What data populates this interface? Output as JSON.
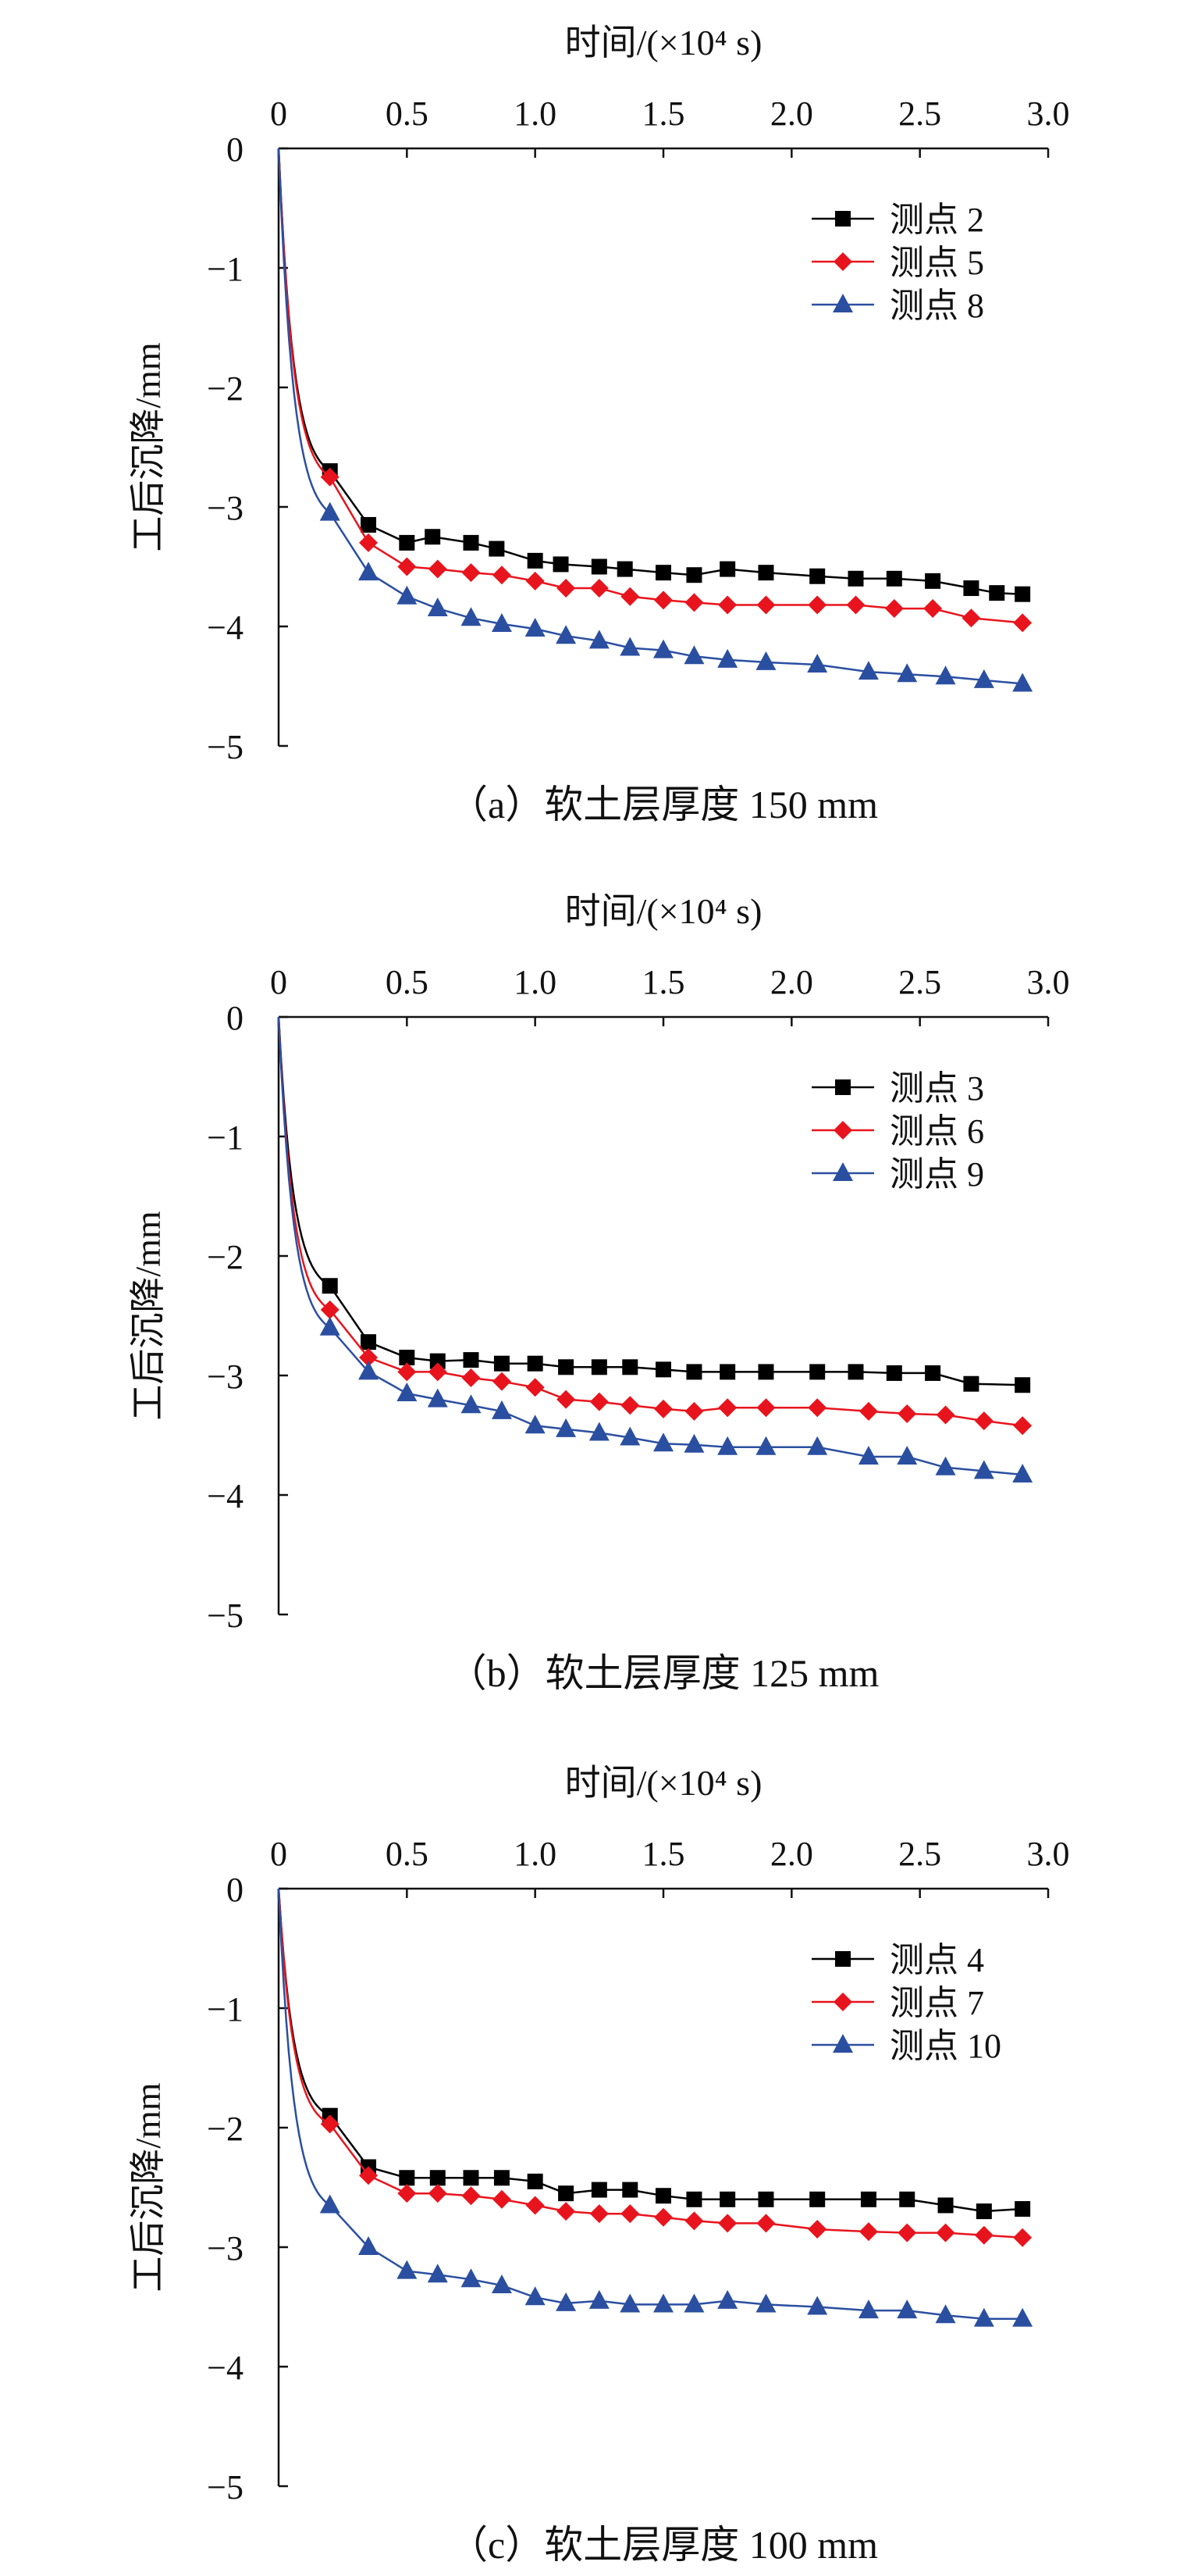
{
  "chart_data": [
    {
      "type": "line",
      "caption": "（a）软土层厚度 150 mm",
      "xlabel": "时间/(×10⁴ s)",
      "ylabel": "工后沉降/mm",
      "xlim": [
        0,
        3.0
      ],
      "ylim": [
        -5,
        0
      ],
      "xticks": [
        "0",
        "0.5",
        "1.0",
        "1.5",
        "2.0",
        "2.5",
        "3.0"
      ],
      "yticks": [
        "0",
        "−1",
        "−2",
        "−3",
        "−4",
        "−5"
      ],
      "legend_position": "top-right",
      "series": [
        {
          "name": "测点 2",
          "color": "#000000",
          "marker": "square",
          "x": [
            0,
            0.2,
            0.35,
            0.5,
            0.6,
            0.75,
            0.85,
            1.0,
            1.1,
            1.25,
            1.35,
            1.5,
            1.62,
            1.75,
            1.9,
            2.1,
            2.25,
            2.4,
            2.55,
            2.7,
            2.8,
            2.9
          ],
          "y": [
            0,
            -2.7,
            -3.15,
            -3.3,
            -3.25,
            -3.3,
            -3.35,
            -3.45,
            -3.48,
            -3.5,
            -3.52,
            -3.55,
            -3.57,
            -3.52,
            -3.55,
            -3.58,
            -3.6,
            -3.6,
            -3.62,
            -3.68,
            -3.72,
            -3.73
          ]
        },
        {
          "name": "测点 5",
          "color": "#e8141d",
          "marker": "diamond",
          "x": [
            0,
            0.2,
            0.35,
            0.5,
            0.62,
            0.75,
            0.87,
            1.0,
            1.12,
            1.25,
            1.37,
            1.5,
            1.62,
            1.75,
            1.9,
            2.1,
            2.25,
            2.4,
            2.55,
            2.7,
            2.9
          ],
          "y": [
            0,
            -2.75,
            -3.3,
            -3.5,
            -3.52,
            -3.55,
            -3.57,
            -3.62,
            -3.68,
            -3.68,
            -3.75,
            -3.78,
            -3.8,
            -3.82,
            -3.82,
            -3.82,
            -3.82,
            -3.85,
            -3.85,
            -3.93,
            -3.97
          ]
        },
        {
          "name": "测点 8",
          "color": "#2b4fa0",
          "marker": "triangle",
          "x": [
            0,
            0.2,
            0.35,
            0.5,
            0.62,
            0.75,
            0.87,
            1.0,
            1.12,
            1.25,
            1.37,
            1.5,
            1.62,
            1.75,
            1.9,
            2.1,
            2.3,
            2.45,
            2.6,
            2.75,
            2.9
          ],
          "y": [
            0,
            -3.05,
            -3.55,
            -3.75,
            -3.85,
            -3.93,
            -3.98,
            -4.02,
            -4.08,
            -4.12,
            -4.18,
            -4.2,
            -4.25,
            -4.28,
            -4.3,
            -4.32,
            -4.38,
            -4.4,
            -4.42,
            -4.45,
            -4.48
          ]
        }
      ]
    },
    {
      "type": "line",
      "caption": "（b）软土层厚度 125 mm",
      "xlabel": "时间/(×10⁴ s)",
      "ylabel": "工后沉降/mm",
      "xlim": [
        0,
        3.0
      ],
      "ylim": [
        -5,
        0
      ],
      "xticks": [
        "0",
        "0.5",
        "1.0",
        "1.5",
        "2.0",
        "2.5",
        "3.0"
      ],
      "yticks": [
        "0",
        "−1",
        "−2",
        "−3",
        "−4",
        "−5"
      ],
      "legend_position": "top-right",
      "series": [
        {
          "name": "测点 3",
          "color": "#000000",
          "marker": "square",
          "x": [
            0,
            0.2,
            0.35,
            0.5,
            0.62,
            0.75,
            0.87,
            1.0,
            1.12,
            1.25,
            1.37,
            1.5,
            1.62,
            1.75,
            1.9,
            2.1,
            2.25,
            2.4,
            2.55,
            2.7,
            2.9
          ],
          "y": [
            0,
            -2.25,
            -2.72,
            -2.85,
            -2.88,
            -2.87,
            -2.9,
            -2.9,
            -2.93,
            -2.93,
            -2.93,
            -2.95,
            -2.97,
            -2.97,
            -2.97,
            -2.97,
            -2.97,
            -2.98,
            -2.98,
            -3.07,
            -3.08
          ]
        },
        {
          "name": "测点 6",
          "color": "#e8141d",
          "marker": "diamond",
          "x": [
            0,
            0.2,
            0.35,
            0.5,
            0.62,
            0.75,
            0.87,
            1.0,
            1.12,
            1.25,
            1.37,
            1.5,
            1.62,
            1.75,
            1.9,
            2.1,
            2.3,
            2.45,
            2.6,
            2.75,
            2.9
          ],
          "y": [
            0,
            -2.45,
            -2.85,
            -2.97,
            -2.97,
            -3.02,
            -3.05,
            -3.1,
            -3.2,
            -3.22,
            -3.25,
            -3.28,
            -3.3,
            -3.27,
            -3.27,
            -3.27,
            -3.3,
            -3.32,
            -3.33,
            -3.38,
            -3.42
          ]
        },
        {
          "name": "测点 9",
          "color": "#2b4fa0",
          "marker": "triangle",
          "x": [
            0,
            0.2,
            0.35,
            0.5,
            0.62,
            0.75,
            0.87,
            1.0,
            1.12,
            1.25,
            1.37,
            1.5,
            1.62,
            1.75,
            1.9,
            2.1,
            2.3,
            2.45,
            2.6,
            2.75,
            2.9
          ],
          "y": [
            0,
            -2.6,
            -2.97,
            -3.15,
            -3.2,
            -3.25,
            -3.3,
            -3.42,
            -3.45,
            -3.48,
            -3.52,
            -3.57,
            -3.58,
            -3.6,
            -3.6,
            -3.6,
            -3.68,
            -3.68,
            -3.77,
            -3.8,
            -3.83
          ]
        }
      ]
    },
    {
      "type": "line",
      "caption": "（c）软土层厚度 100 mm",
      "xlabel": "时间/(×10⁴ s)",
      "ylabel": "工后沉降/mm",
      "xlim": [
        0,
        3.0
      ],
      "ylim": [
        -5,
        0
      ],
      "xticks": [
        "0",
        "0.5",
        "1.0",
        "1.5",
        "2.0",
        "2.5",
        "3.0"
      ],
      "yticks": [
        "0",
        "−1",
        "−2",
        "−3",
        "−4",
        "−5"
      ],
      "legend_position": "top-right",
      "series": [
        {
          "name": "测点 4",
          "color": "#000000",
          "marker": "square",
          "x": [
            0,
            0.2,
            0.35,
            0.5,
            0.62,
            0.75,
            0.87,
            1.0,
            1.12,
            1.25,
            1.37,
            1.5,
            1.62,
            1.75,
            1.9,
            2.1,
            2.3,
            2.45,
            2.6,
            2.75,
            2.9
          ],
          "y": [
            0,
            -1.9,
            -2.33,
            -2.42,
            -2.42,
            -2.42,
            -2.42,
            -2.45,
            -2.55,
            -2.52,
            -2.52,
            -2.57,
            -2.6,
            -2.6,
            -2.6,
            -2.6,
            -2.6,
            -2.6,
            -2.65,
            -2.7,
            -2.68
          ]
        },
        {
          "name": "测点 7",
          "color": "#e8141d",
          "marker": "diamond",
          "x": [
            0,
            0.2,
            0.35,
            0.5,
            0.62,
            0.75,
            0.87,
            1.0,
            1.12,
            1.25,
            1.37,
            1.5,
            1.62,
            1.75,
            1.9,
            2.1,
            2.3,
            2.45,
            2.6,
            2.75,
            2.9
          ],
          "y": [
            0,
            -1.97,
            -2.4,
            -2.55,
            -2.55,
            -2.57,
            -2.6,
            -2.65,
            -2.7,
            -2.72,
            -2.72,
            -2.75,
            -2.78,
            -2.8,
            -2.8,
            -2.85,
            -2.87,
            -2.88,
            -2.88,
            -2.9,
            -2.92
          ]
        },
        {
          "name": "测点 10",
          "color": "#2b4fa0",
          "marker": "triangle",
          "x": [
            0,
            0.2,
            0.35,
            0.5,
            0.62,
            0.75,
            0.87,
            1.0,
            1.12,
            1.25,
            1.37,
            1.5,
            1.62,
            1.75,
            1.9,
            2.1,
            2.3,
            2.45,
            2.6,
            2.75,
            2.9
          ],
          "y": [
            0,
            -2.65,
            -3.0,
            -3.2,
            -3.23,
            -3.27,
            -3.32,
            -3.42,
            -3.47,
            -3.45,
            -3.48,
            -3.48,
            -3.48,
            -3.45,
            -3.48,
            -3.5,
            -3.53,
            -3.53,
            -3.57,
            -3.6,
            -3.6
          ]
        }
      ]
    }
  ]
}
